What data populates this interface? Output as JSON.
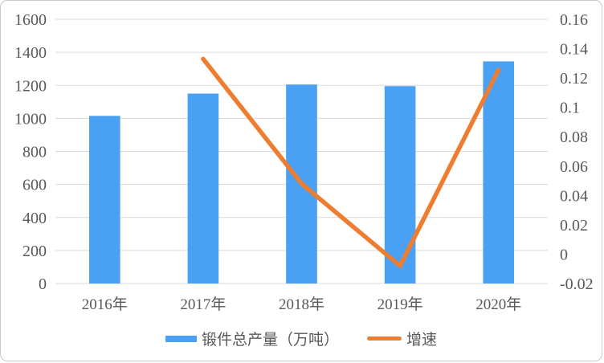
{
  "chart_data": {
    "type": "combo",
    "categories": [
      "2016年",
      "2017年",
      "2018年",
      "2019年",
      "2020年"
    ],
    "series": [
      {
        "name": "锻件总产量（万吨）",
        "type": "bar",
        "axis": "left",
        "color": "#4AA0F2",
        "values": [
          1015,
          1150,
          1205,
          1195,
          1345
        ]
      },
      {
        "name": "增速",
        "type": "line",
        "axis": "right",
        "color": "#ED7D31",
        "values": [
          null,
          0.133,
          0.048,
          -0.008,
          0.1255
        ]
      }
    ],
    "left_axis": {
      "min": 0,
      "max": 1600,
      "step": 200,
      "labels": [
        "1600",
        "1400",
        "1200",
        "1000",
        "800",
        "600",
        "400",
        "200",
        "0"
      ]
    },
    "right_axis": {
      "min": -0.02,
      "max": 0.16,
      "step": 0.02,
      "labels": [
        "0.16",
        "0.14",
        "0.12",
        "0.1",
        "0.08",
        "0.06",
        "0.04",
        "0.02",
        "0",
        "-0.02"
      ]
    },
    "grid": "horizontal",
    "legend_position": "bottom",
    "colors": {
      "grid": "#D9D9D9",
      "text": "#595959",
      "bar": "#4AA0F2",
      "line": "#ED7D31"
    }
  }
}
